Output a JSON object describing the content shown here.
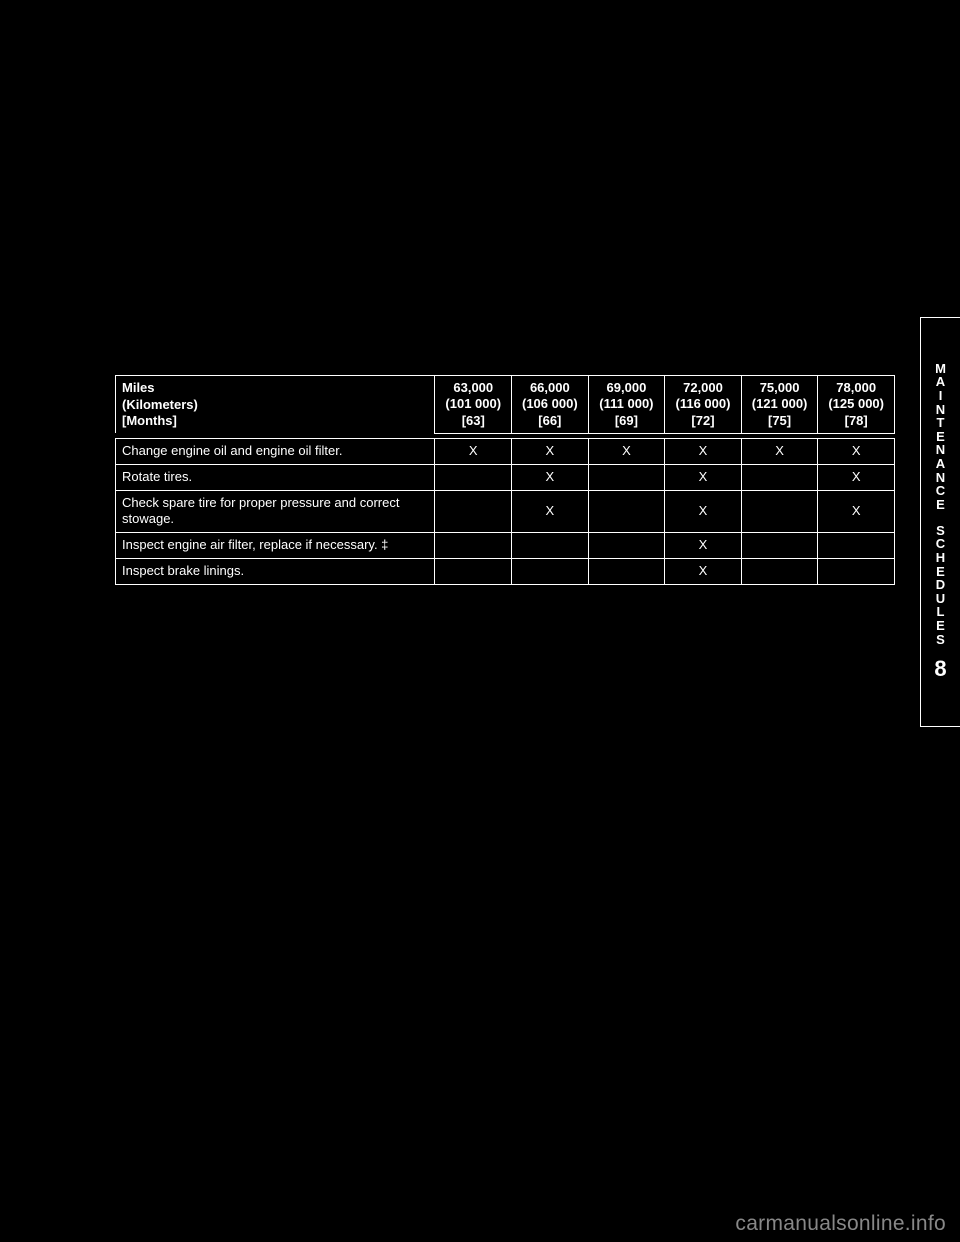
{
  "header": {
    "label_miles": "Miles",
    "label_km": "(Kilometers)",
    "label_months": "[Months]",
    "cols": [
      {
        "miles": "63,000",
        "km": "(101 000)",
        "months": "[63]"
      },
      {
        "miles": "66,000",
        "km": "(106 000)",
        "months": "[66]"
      },
      {
        "miles": "69,000",
        "km": "(111 000)",
        "months": "[69]"
      },
      {
        "miles": "72,000",
        "km": "(116 000)",
        "months": "[72]"
      },
      {
        "miles": "75,000",
        "km": "(121 000)",
        "months": "[75]"
      },
      {
        "miles": "78,000",
        "km": "(125 000)",
        "months": "[78]"
      }
    ]
  },
  "rows": [
    {
      "desc": "Change engine oil and engine oil filter.",
      "marks": [
        "X",
        "X",
        "X",
        "X",
        "X",
        "X"
      ]
    },
    {
      "desc": "Rotate tires.",
      "marks": [
        "",
        "X",
        "",
        "X",
        "",
        "X"
      ]
    },
    {
      "desc": "Check spare tire for proper pressure and correct stowage.",
      "marks": [
        "",
        "X",
        "",
        "X",
        "",
        "X"
      ]
    },
    {
      "desc": "Inspect engine air filter, replace if necessary. ‡",
      "marks": [
        "",
        "",
        "",
        "X",
        "",
        ""
      ]
    },
    {
      "desc": "Inspect brake linings.",
      "marks": [
        "",
        "",
        "",
        "X",
        "",
        ""
      ]
    }
  ],
  "sidebar": {
    "word1": "MAINTENANCE",
    "word2": "SCHEDULES",
    "num": "8"
  },
  "watermark": "carmanualsonline.info"
}
